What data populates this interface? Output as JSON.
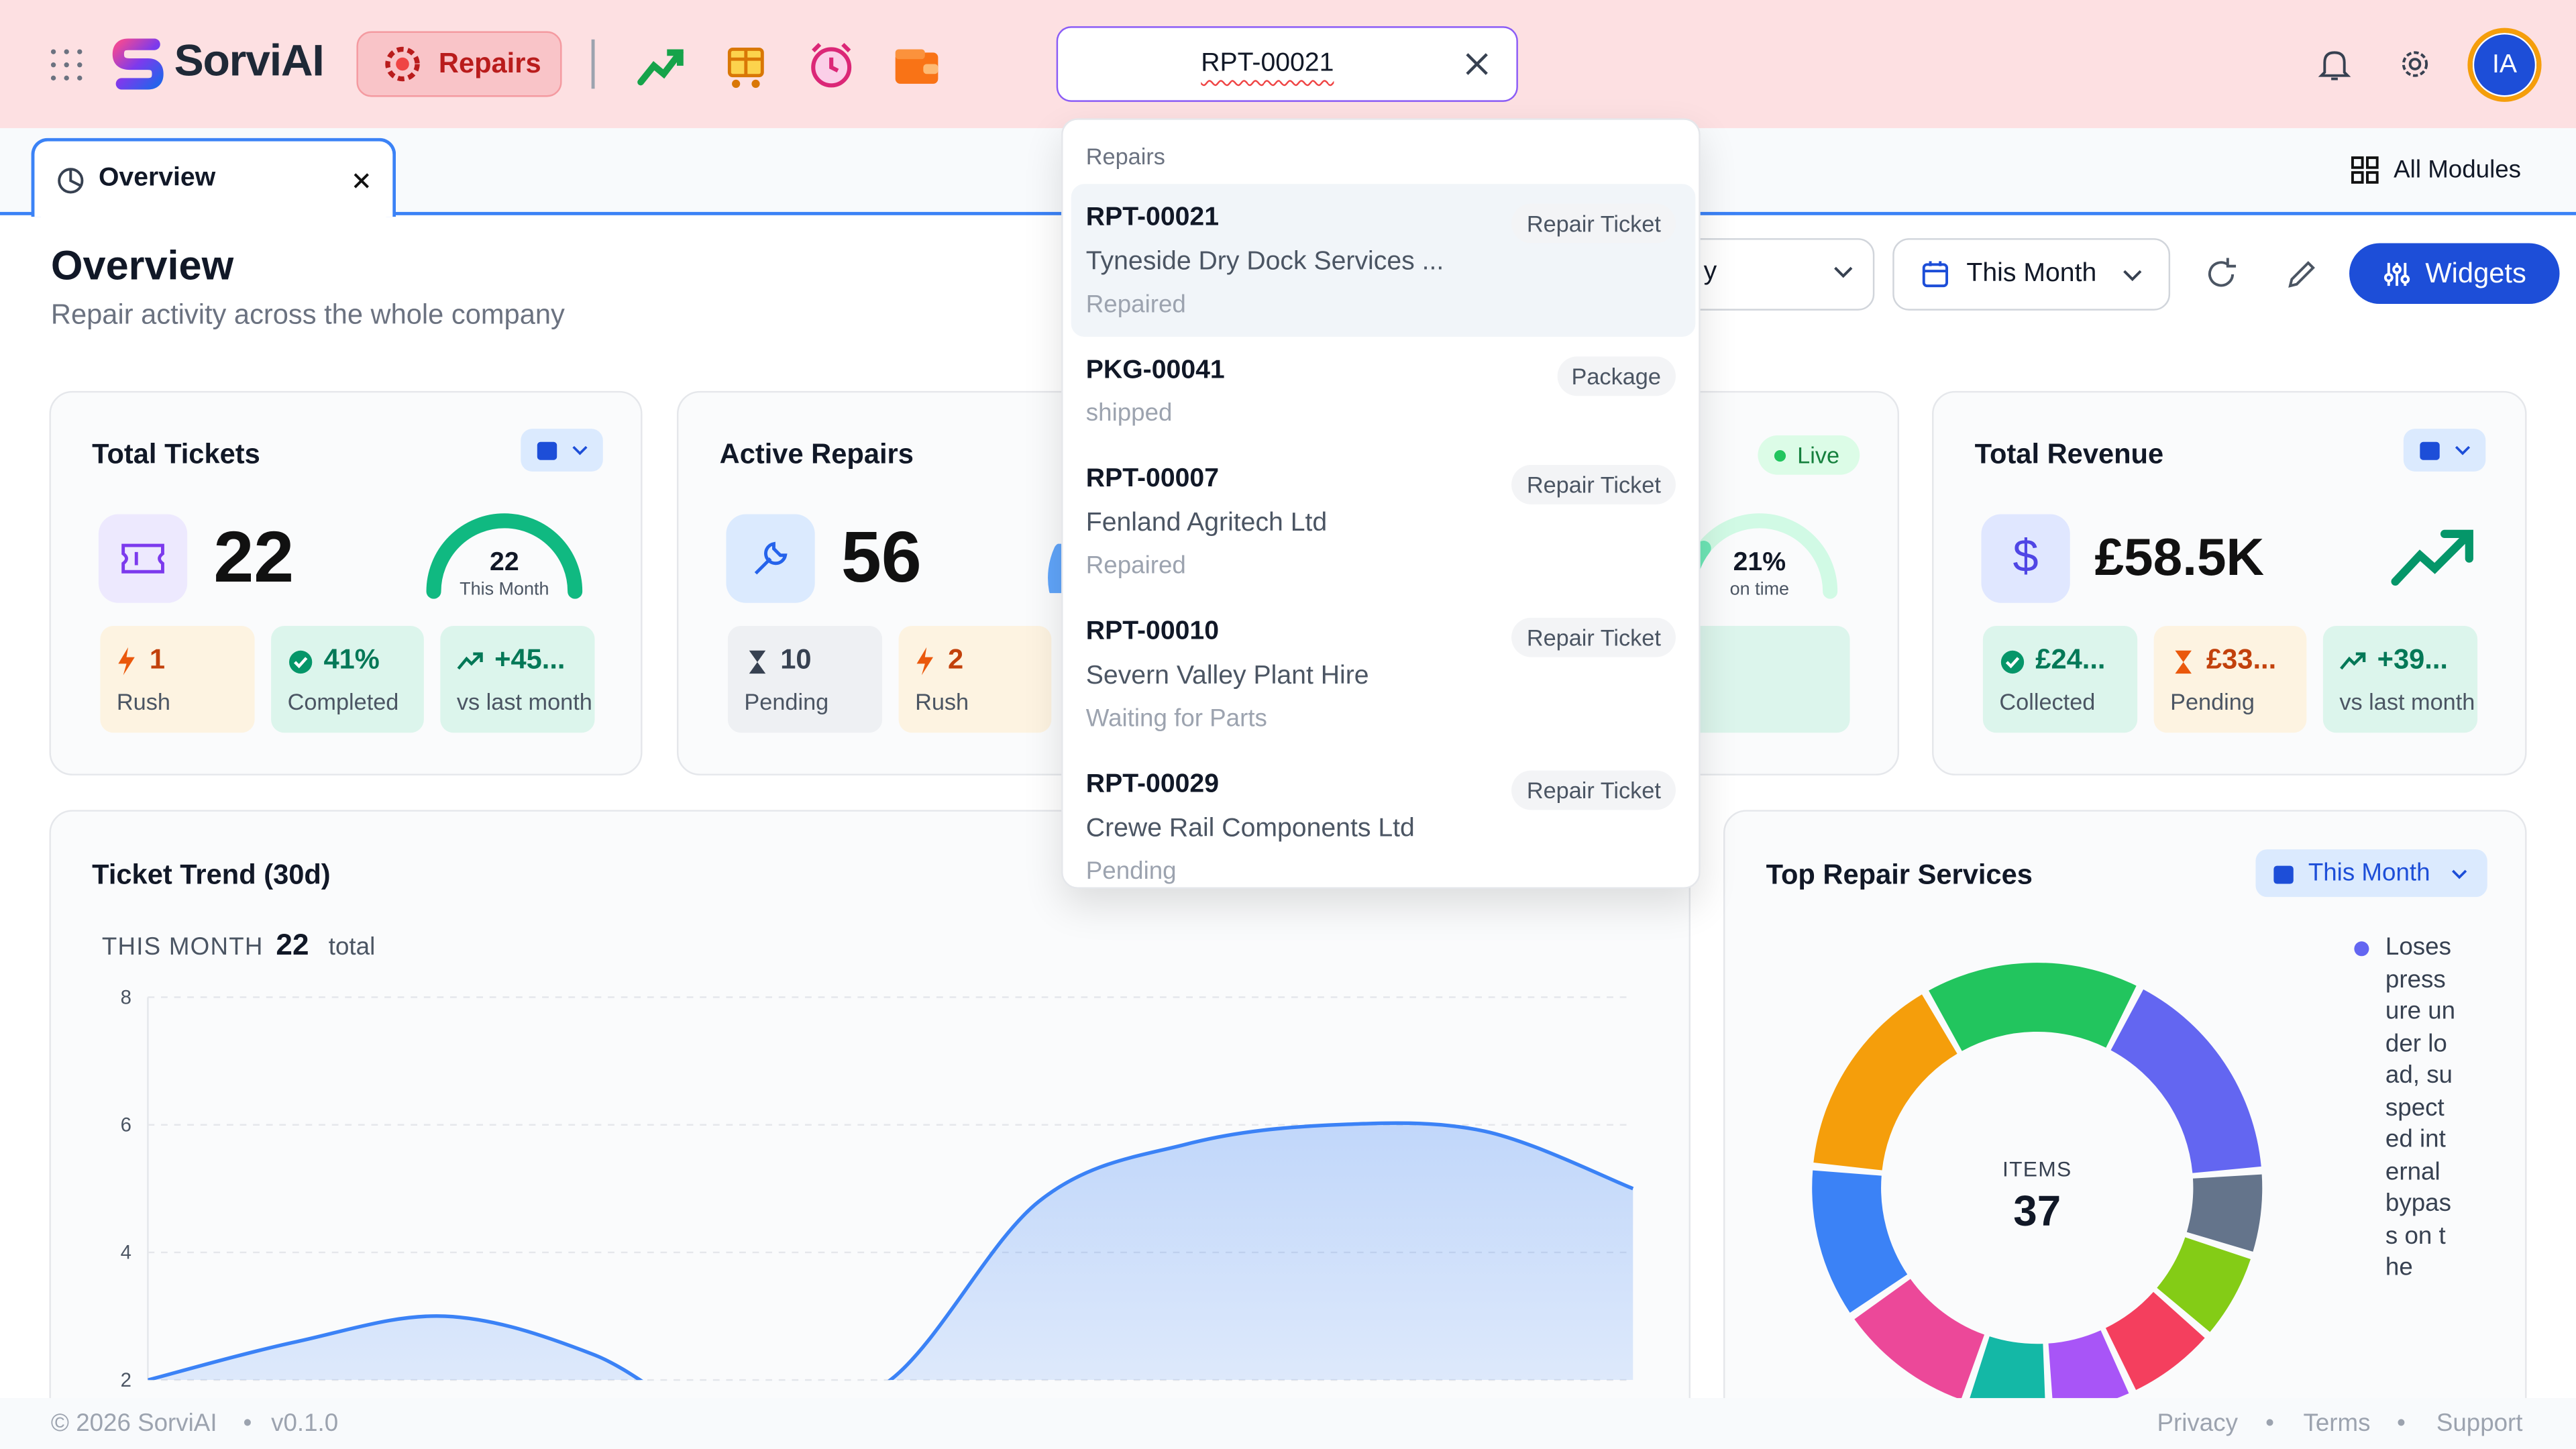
{
  "header": {
    "app_name": "SorviAI",
    "active_module": "Repairs",
    "search_value": "RPT-00021",
    "avatar_initials": "IA"
  },
  "tabs": [
    {
      "label": "Overview"
    }
  ],
  "all_modules_label": "All Modules",
  "page": {
    "title": "Overview",
    "subtitle": "Repair activity across the whole company",
    "filter_partial": "y",
    "period": "This Month",
    "widgets_label": "Widgets"
  },
  "cards": {
    "total_tickets": {
      "title": "Total Tickets",
      "value": "22",
      "gauge_value": "22",
      "gauge_label": "This Month",
      "chips": [
        {
          "value": "1",
          "label": "Rush"
        },
        {
          "value": "41%",
          "label": "Completed"
        },
        {
          "value": "+45...",
          "label": "vs last month"
        }
      ]
    },
    "active_repairs": {
      "title": "Active Repairs",
      "value": "56",
      "chips": [
        {
          "value": "10",
          "label": "Pending"
        },
        {
          "value": "2",
          "label": "Rush"
        }
      ]
    },
    "on_time": {
      "badge": "Live",
      "gauge_value": "21%",
      "gauge_label": "on time",
      "gauge_fraction": 0.21,
      "chip_partial": "e"
    },
    "revenue": {
      "title": "Total Revenue",
      "value": "£58.5K",
      "chips": [
        {
          "value": "£24...",
          "label": "Collected"
        },
        {
          "value": "£33...",
          "label": "Pending"
        },
        {
          "value": "+39...",
          "label": "vs last month"
        }
      ]
    }
  },
  "dropdown": {
    "group": "Repairs",
    "items": [
      {
        "id": "RPT-00021",
        "type": "Repair Ticket",
        "name": "Tyneside Dry Dock Services ...",
        "status": "Repaired"
      },
      {
        "id": "PKG-00041",
        "type": "Package",
        "name": "",
        "status": "shipped"
      },
      {
        "id": "RPT-00007",
        "type": "Repair Ticket",
        "name": "Fenland Agritech Ltd",
        "status": "Repaired"
      },
      {
        "id": "RPT-00010",
        "type": "Repair Ticket",
        "name": "Severn Valley Plant Hire",
        "status": "Waiting for Parts"
      },
      {
        "id": "RPT-00029",
        "type": "Repair Ticket",
        "name": "Crewe Rail Components Ltd",
        "status": "Pending"
      }
    ]
  },
  "trend": {
    "title": "Ticket Trend (30d)",
    "period_label": "THIS MONTH",
    "total": "22",
    "total_suffix": "total"
  },
  "chart_data": [
    {
      "type": "area",
      "title": "Ticket Trend (30d)",
      "ylim": [
        2,
        8
      ],
      "yticks": [
        "8",
        "6",
        "4",
        "2"
      ],
      "x": [
        0,
        1,
        2,
        3,
        4,
        5,
        6,
        7,
        8,
        9,
        10
      ],
      "values": [
        2.0,
        2.6,
        3.0,
        2.4,
        1.2,
        2.0,
        4.8,
        5.7,
        6.0,
        5.9,
        5.0
      ],
      "color": "#3b82f6"
    },
    {
      "type": "pie",
      "title": "Top Repair Services",
      "period": "This Month",
      "center_label": "ITEMS",
      "center_value": "37",
      "legend_text": "Loses pressure under load, suspected internal bypass on the",
      "slices": [
        {
          "value": 7.8,
          "color": "#22c55e"
        },
        {
          "value": 8.0,
          "color": "#6366f1"
        },
        {
          "value": 3.0,
          "color": "#64748b"
        },
        {
          "value": 3.2,
          "color": "#84cc16"
        },
        {
          "value": 3.3,
          "color": "#f43f5e"
        },
        {
          "value": 3.0,
          "color": "#a855f7"
        },
        {
          "value": 3.0,
          "color": "#14b8a6"
        },
        {
          "value": 5.0,
          "color": "#ec4899"
        },
        {
          "value": 5.5,
          "color": "#3b82f6"
        },
        {
          "value": 7.5,
          "color": "#f59e0b"
        }
      ]
    }
  ],
  "footer": {
    "copyright": "© 2026 SorviAI",
    "version": "v0.1.0",
    "links": [
      "Privacy",
      "Terms",
      "Support"
    ]
  }
}
